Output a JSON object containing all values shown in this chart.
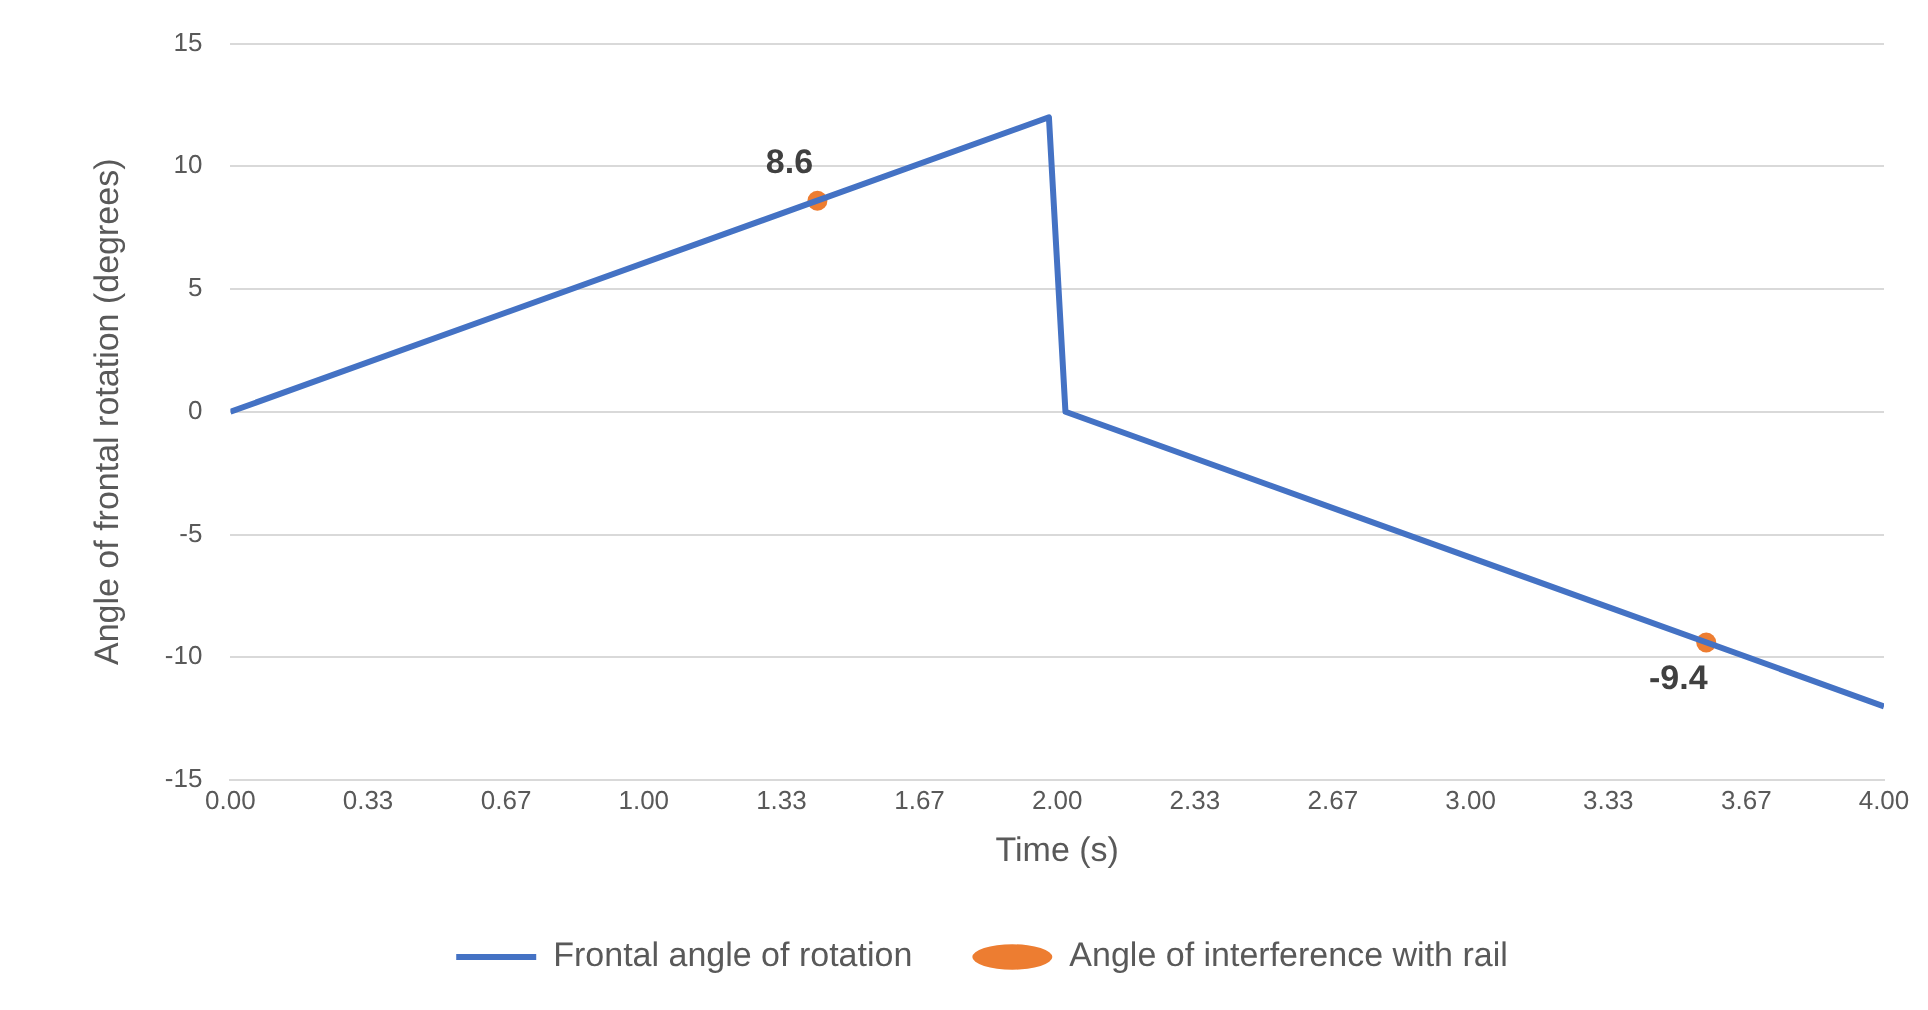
{
  "chart_data": {
    "type": "line",
    "xlabel": "Time (s)",
    "ylabel": "Angle of frontal rotation (degrees)",
    "xlim": [
      0,
      4
    ],
    "xticks": [
      {
        "value": 0,
        "label": "0.00"
      },
      {
        "value": 0.333,
        "label": "0.33"
      },
      {
        "value": 0.667,
        "label": "0.67"
      },
      {
        "value": 1,
        "label": "1.00"
      },
      {
        "value": 1.333,
        "label": "1.33"
      },
      {
        "value": 1.667,
        "label": "1.67"
      },
      {
        "value": 2,
        "label": "2.00"
      },
      {
        "value": 2.333,
        "label": "2.33"
      },
      {
        "value": 2.667,
        "label": "2.67"
      },
      {
        "value": 3,
        "label": "3.00"
      },
      {
        "value": 3.333,
        "label": "3.33"
      },
      {
        "value": 3.667,
        "label": "3.67"
      },
      {
        "value": 4,
        "label": "4.00"
      }
    ],
    "ylim": [
      -15,
      15
    ],
    "yticks": [
      -15,
      -10,
      -5,
      0,
      5,
      10,
      15
    ],
    "series": [
      {
        "name": "Frontal angle of rotation",
        "type": "line",
        "color": "#4472c4",
        "marker": "none",
        "x": [
          0,
          1.98,
          2.02,
          4
        ],
        "values": [
          0,
          12,
          0,
          -12
        ]
      },
      {
        "name": "Angle of interference with rail",
        "type": "scatter",
        "color": "#ed7d31",
        "marker": "circle",
        "x": [
          1.42,
          3.57
        ],
        "values": [
          8.6,
          -9.4
        ],
        "value_labels": [
          "8.6",
          "-9.4"
        ]
      }
    ],
    "grid": "y",
    "legend": "bottom"
  }
}
